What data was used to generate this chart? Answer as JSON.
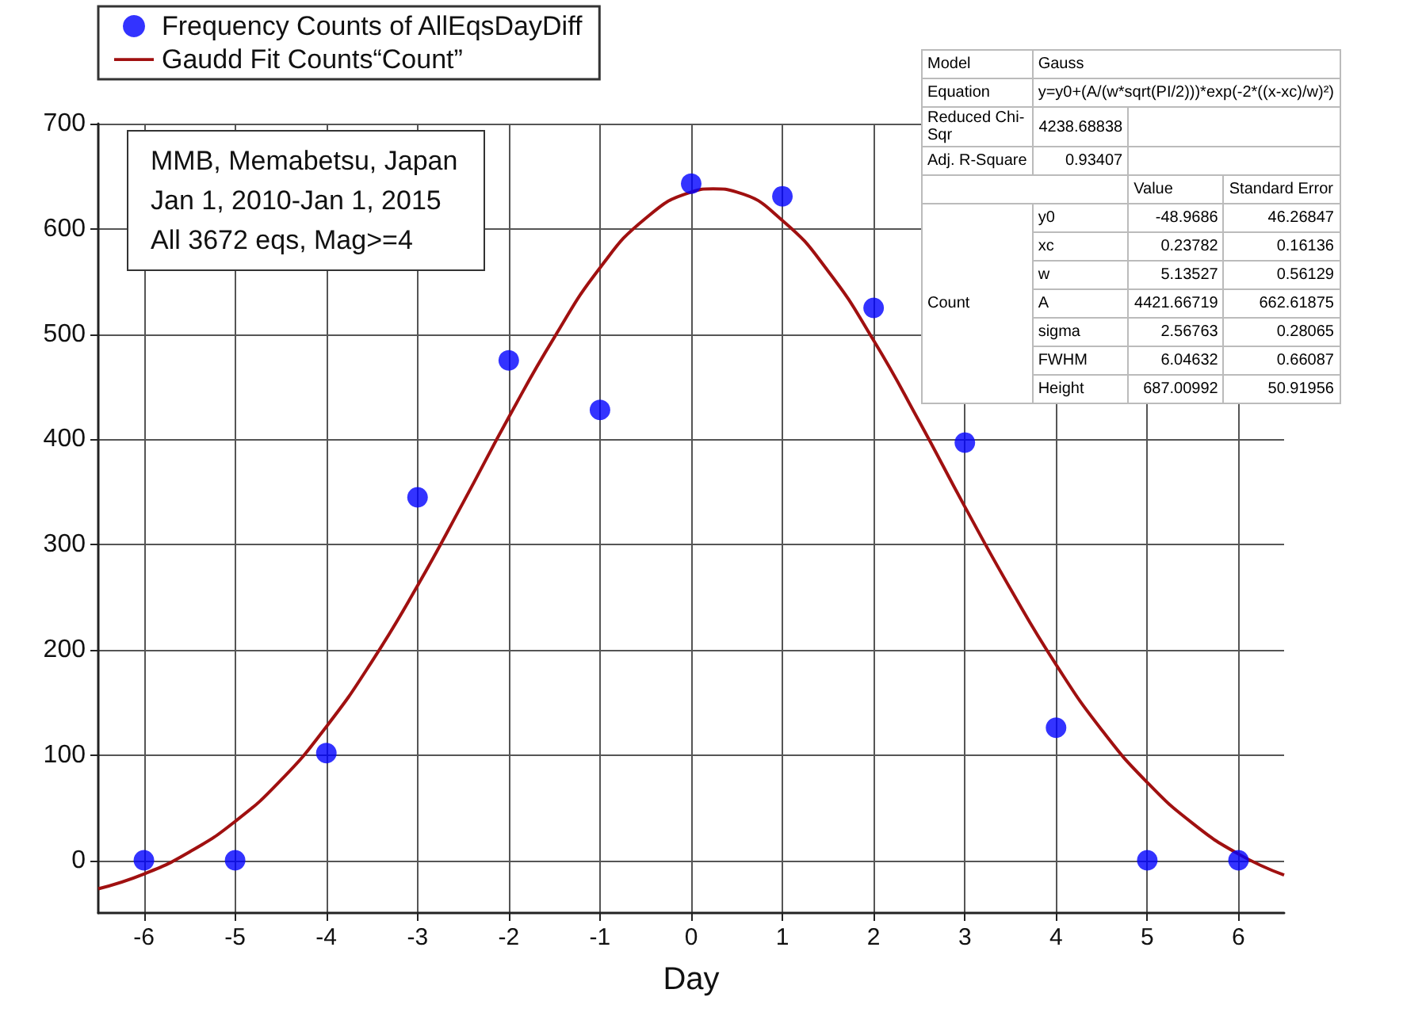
{
  "chart_data": {
    "type": "scatter",
    "xlabel": "Day",
    "xlim": [
      -6.5,
      6.5
    ],
    "xticks": [
      -6,
      -5,
      -4,
      -3,
      -2,
      -1,
      0,
      1,
      2,
      3,
      4,
      5,
      6
    ],
    "ylim": [
      -50,
      700
    ],
    "yticks": [
      0,
      100,
      200,
      300,
      400,
      500,
      600,
      700
    ],
    "grid": true,
    "legend": "top left",
    "series": [
      {
        "name": "Frequency Counts of AllEqsDayDiff",
        "marker": "circle",
        "color": "#0000ff",
        "x": [
          -6,
          -5,
          -4,
          -3,
          -2,
          -1,
          0,
          1,
          2,
          3,
          4,
          5,
          6
        ],
        "values": [
          0,
          0,
          102,
          345,
          475,
          428,
          643,
          631,
          525,
          397,
          126,
          0,
          0
        ]
      },
      {
        "name": "Gaudd Fit Counts“Count”",
        "type": "line",
        "marker": "none",
        "line_style": "solid",
        "color": "#a01010",
        "x": [
          -6.5,
          -6,
          -5.5,
          -5,
          -4.5,
          -4,
          -3.5,
          -3,
          -2.5,
          -2,
          -1.5,
          -1,
          -0.5,
          0,
          0.24,
          0.5,
          1,
          1.5,
          2,
          2.5,
          3,
          3.5,
          4,
          4.5,
          5,
          5.5,
          6,
          6.5
        ],
        "values": [
          -27,
          -13,
          8,
          37,
          76,
          127,
          189,
          261,
          340,
          421,
          497,
          563,
          610,
          635,
          638,
          635,
          608,
          560,
          494,
          417,
          336,
          258,
          186,
          124,
          74,
          35,
          6,
          -14
        ]
      }
    ],
    "annotations": [
      "MMB, Memabetsu, Japan",
      "Jan 1, 2010-Jan 1, 2015",
      "All 3672 eqs, Mag>=4",
      "Model",
      "Gauss",
      "Equation",
      "y=y0+(A/(w*sqrt(PI/2)))*exp(-2*((x-xc)/w)²)",
      "Reduced Chi-Sqr",
      "4238.68838",
      "Adj. R-Square",
      "0.93407",
      "Value",
      "Standard Error",
      "Count",
      "y0",
      "-48.9686",
      "46.26847",
      "xc",
      "0.23782",
      "0.16136",
      "w",
      "5.13527",
      "0.56129",
      "A",
      "4421.66719",
      "662.61875",
      "sigma",
      "2.56763",
      "0.28065",
      "FWHM",
      "6.04632",
      "0.66087",
      "Height",
      "687.00992",
      "50.91956"
    ]
  }
}
